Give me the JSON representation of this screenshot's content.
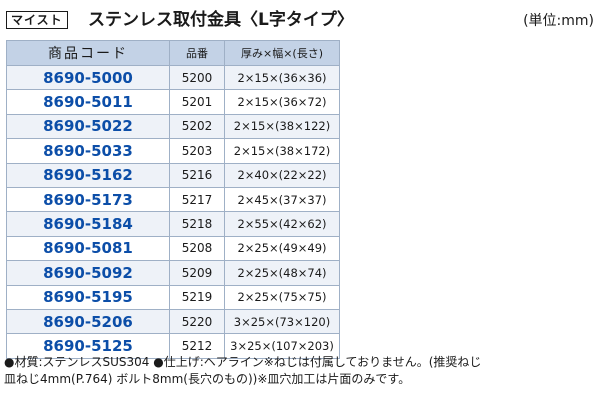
{
  "header": {
    "brand": "マイスト",
    "title": "ステンレス取付金具〈L字タイプ〉",
    "unit": "(単位:mm)"
  },
  "table": {
    "columns": [
      "商品コード",
      "品番",
      "厚み×幅×(長さ)"
    ],
    "rows": [
      {
        "code": "8690-5000",
        "num": "5200",
        "size": "2×15×(36×36)"
      },
      {
        "code": "8690-5011",
        "num": "5201",
        "size": "2×15×(36×72)"
      },
      {
        "code": "8690-5022",
        "num": "5202",
        "size": "2×15×(38×122)"
      },
      {
        "code": "8690-5033",
        "num": "5203",
        "size": "2×15×(38×172)"
      },
      {
        "code": "8690-5162",
        "num": "5216",
        "size": "2×40×(22×22)"
      },
      {
        "code": "8690-5173",
        "num": "5217",
        "size": "2×45×(37×37)"
      },
      {
        "code": "8690-5184",
        "num": "5218",
        "size": "2×55×(42×62)"
      },
      {
        "code": "8690-5081",
        "num": "5208",
        "size": "2×25×(49×49)"
      },
      {
        "code": "8690-5092",
        "num": "5209",
        "size": "2×25×(48×74)"
      },
      {
        "code": "8690-5195",
        "num": "5219",
        "size": "2×25×(75×75)"
      },
      {
        "code": "8690-5206",
        "num": "5220",
        "size": "3×25×(73×120)"
      },
      {
        "code": "8690-5125",
        "num": "5212",
        "size": "3×25×(107×203)"
      }
    ]
  },
  "notes": {
    "line1": "●材質:ステンレスSUS304 ●仕上げ:ヘアライン※ねじは付属しておりません。(推奨ねじ",
    "line2": "皿ねじ4mm(P.764) ボルト8mm(長穴のもの))※皿穴加工は片面のみです。"
  }
}
